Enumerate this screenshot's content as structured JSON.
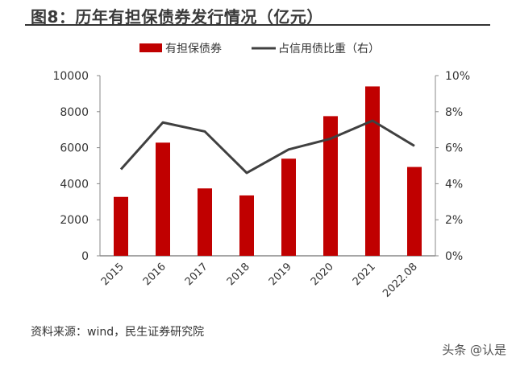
{
  "title": "图8：历年有担保债券发行情况（亿元）",
  "source": "资料来源：wind，民生证券研究院",
  "watermark": "头条 @认是",
  "chart_data": {
    "type": "bar",
    "title": "图8：历年有担保债券发行情况（亿元）",
    "categories": [
      "2015",
      "2016",
      "2017",
      "2018",
      "2019",
      "2020",
      "2021",
      "2022.08"
    ],
    "series": [
      {
        "name": "有担保债券",
        "type": "bar",
        "axis": "left",
        "color": "#c00000",
        "values": [
          3270,
          6280,
          3740,
          3350,
          5390,
          7750,
          9400,
          4930
        ]
      },
      {
        "name": "占信用债比重（右）",
        "type": "line",
        "axis": "right",
        "color": "#404040",
        "values": [
          4.8,
          7.4,
          6.9,
          4.6,
          5.9,
          6.5,
          7.5,
          6.1
        ]
      }
    ],
    "left_axis": {
      "min": 0,
      "max": 10000,
      "ticks": [
        "0",
        "2000",
        "4000",
        "6000",
        "8000",
        "10000"
      ]
    },
    "right_axis": {
      "min": 0,
      "max": 10,
      "ticks": [
        "0%",
        "2%",
        "4%",
        "6%",
        "8%",
        "10%"
      ]
    },
    "legend_position": "top-center",
    "grid": false
  }
}
